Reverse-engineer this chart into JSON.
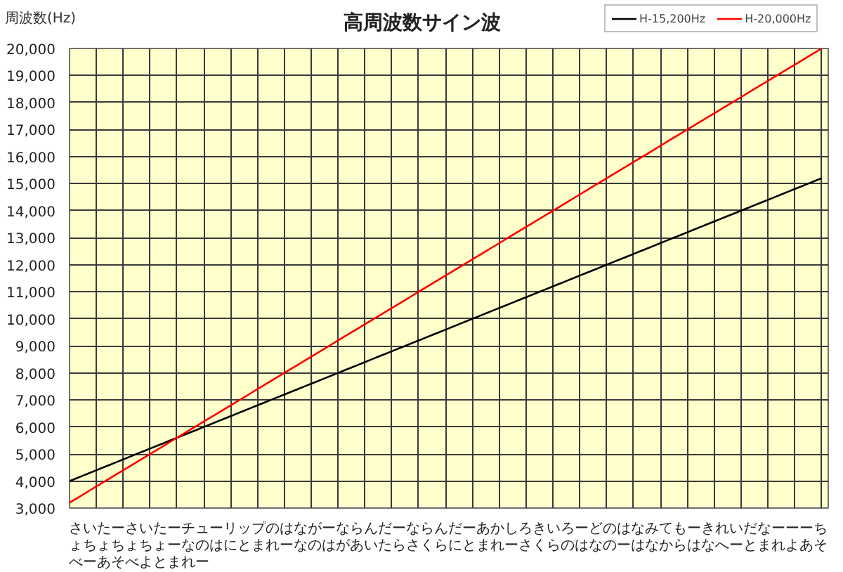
{
  "chart_data": {
    "type": "line",
    "title": "高周波数サイン波",
    "ylabel": "周波数(Hz)",
    "xlabel": "さいたーさいたーチューリップのはながーならんだーならんだーあかしろきいろーどのはなみてもーきれいだなーーーちょちょちょちょーなのはにとまれーなのはがあいたらさくらにとまれーさくらのはなのーはなからはなへーとまれよあそべーあそべよとまれー",
    "categories": [
      null,
      null,
      null,
      null,
      null,
      null,
      null,
      null,
      null,
      null,
      null,
      null,
      null,
      null,
      null,
      null,
      null,
      null,
      null,
      null,
      null,
      null,
      null,
      null,
      null,
      null,
      null,
      null,
      null,
      null,
      null,
      null,
      null,
      null,
      null,
      null,
      null,
      null,
      null,
      null,
      null,
      null,
      null,
      null,
      null,
      null,
      null,
      null,
      null,
      null,
      null,
      null,
      null,
      null,
      null,
      null,
      null,
      null,
      null,
      null,
      null,
      null,
      null,
      null,
      null,
      null,
      null,
      null,
      null,
      null,
      null,
      null,
      null,
      null,
      null,
      null,
      null,
      null,
      null,
      null,
      null,
      null,
      null,
      null,
      null,
      null,
      null,
      null,
      null,
      null,
      null,
      null,
      null,
      null,
      null,
      null,
      null,
      null,
      null,
      null,
      null,
      null,
      null,
      null,
      null,
      null,
      null,
      null,
      null,
      null,
      null,
      null,
      null
    ],
    "series": [
      {
        "name": "H-15,200Hz",
        "color": "#000000",
        "values": [
          4000,
          4100,
          4200,
          4300,
          4400,
          4500,
          4600,
          4700,
          4800,
          4900,
          5000,
          5100,
          5200,
          5300,
          5400,
          5500,
          5600,
          5700,
          5800,
          5900,
          6000,
          6100,
          6200,
          6300,
          6400,
          6500,
          6600,
          6700,
          6800,
          6900,
          7000,
          7100,
          7200,
          7300,
          7400,
          7500,
          7600,
          7700,
          7800,
          7900,
          8000,
          8100,
          8200,
          8300,
          8400,
          8500,
          8600,
          8700,
          8800,
          8900,
          9000,
          9100,
          9200,
          9300,
          9400,
          9500,
          9600,
          9700,
          9800,
          9900,
          10000,
          10100,
          10200,
          10300,
          10400,
          10500,
          10600,
          10700,
          10800,
          10900,
          11000,
          11100,
          11200,
          11300,
          11400,
          11500,
          11600,
          11700,
          11800,
          11900,
          12000,
          12100,
          12200,
          12300,
          12400,
          12500,
          12600,
          12700,
          12800,
          12900,
          13000,
          13100,
          13200,
          13300,
          13400,
          13500,
          13600,
          13700,
          13800,
          13900,
          14000,
          14100,
          14200,
          14300,
          14400,
          14500,
          14600,
          14700,
          14800,
          14900,
          15000,
          15100,
          15200
        ]
      },
      {
        "name": "H-20,000Hz",
        "color": "#ff0000",
        "values": [
          3200,
          3350,
          3500,
          3650,
          3800,
          3950,
          4100,
          4250,
          4400,
          4550,
          4700,
          4850,
          5000,
          5150,
          5300,
          5450,
          5600,
          5750,
          5900,
          6050,
          6200,
          6350,
          6500,
          6650,
          6800,
          6950,
          7100,
          7250,
          7400,
          7550,
          7700,
          7850,
          8000,
          8150,
          8300,
          8450,
          8600,
          8750,
          8900,
          9050,
          9200,
          9350,
          9500,
          9650,
          9800,
          9950,
          10100,
          10250,
          10400,
          10550,
          10700,
          10850,
          11000,
          11150,
          11300,
          11450,
          11600,
          11750,
          11900,
          12050,
          12200,
          12350,
          12500,
          12650,
          12800,
          12950,
          13100,
          13250,
          13400,
          13550,
          13700,
          13850,
          14000,
          14150,
          14300,
          14450,
          14600,
          14750,
          14900,
          15050,
          15200,
          15350,
          15500,
          15650,
          15800,
          15950,
          16100,
          16250,
          16400,
          16550,
          16700,
          16850,
          17000,
          17150,
          17300,
          17450,
          17600,
          17750,
          17900,
          18050,
          18200,
          18350,
          18500,
          18650,
          18800,
          18950,
          19100,
          19250,
          19400,
          19550,
          19700,
          19850,
          20000
        ]
      }
    ],
    "ylim": [
      3000,
      20000
    ],
    "yticks": [
      {
        "value": 3000,
        "label": "3,000"
      },
      {
        "value": 4000,
        "label": "4,000"
      },
      {
        "value": 5000,
        "label": "5,000"
      },
      {
        "value": 6000,
        "label": "6,000"
      },
      {
        "value": 7000,
        "label": "7,000"
      },
      {
        "value": 8000,
        "label": "8,000"
      },
      {
        "value": 9000,
        "label": "9,000"
      },
      {
        "value": 10000,
        "label": "10,000"
      },
      {
        "value": 11000,
        "label": "11,000"
      },
      {
        "value": 12000,
        "label": "12,000"
      },
      {
        "value": 13000,
        "label": "13,000"
      },
      {
        "value": 14000,
        "label": "14,000"
      },
      {
        "value": 15000,
        "label": "15,000"
      },
      {
        "value": 16000,
        "label": "16,000"
      },
      {
        "value": 17000,
        "label": "17,000"
      },
      {
        "value": 18000,
        "label": "18,000"
      },
      {
        "value": 19000,
        "label": "19,000"
      },
      {
        "value": 20000,
        "label": "20,000"
      }
    ],
    "grid": true,
    "legend": "top right"
  }
}
